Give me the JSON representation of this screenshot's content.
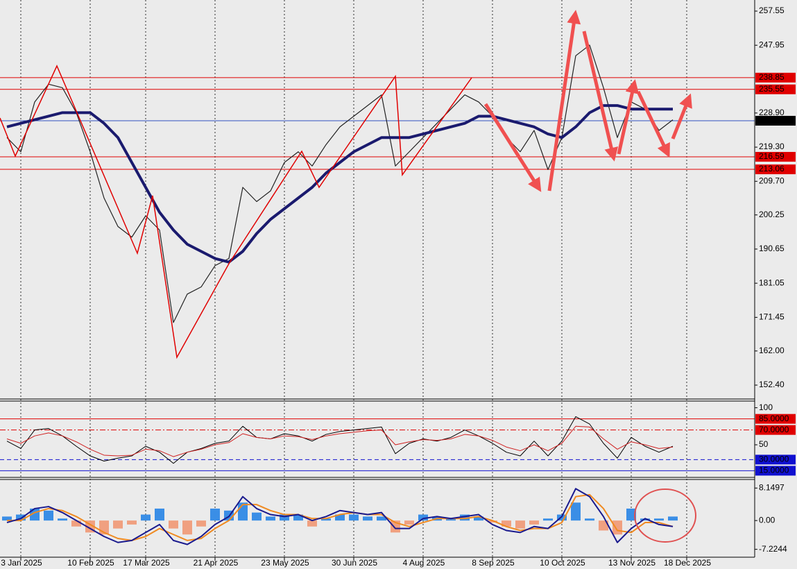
{
  "chart_data": [
    {
      "type": "line",
      "panel": "price",
      "categories": [
        null,
        "3 Jan 2025",
        null,
        null,
        null,
        null,
        "10 Feb 2025",
        null,
        null,
        null,
        "17 Mar 2025",
        null,
        null,
        null,
        null,
        "21 Apr 2025",
        null,
        null,
        null,
        null,
        "23 May 2025",
        null,
        null,
        null,
        null,
        "30 Jun 2025",
        null,
        null,
        null,
        null,
        "4 Aug 2025",
        null,
        null,
        null,
        null,
        "8 Sep 2025",
        null,
        null,
        null,
        null,
        "10 Oct 2025",
        null,
        null,
        null,
        null,
        "13 Nov 2025",
        null,
        null,
        null,
        "18 Dec 2025",
        null,
        null,
        null,
        null
      ],
      "series": [
        {
          "color": "#222222",
          "width": 1.2,
          "values": [
            222,
            218,
            232,
            237,
            236,
            229,
            218,
            205,
            197,
            194,
            200,
            196,
            170,
            178,
            180,
            186,
            188,
            208,
            204,
            207,
            215,
            218,
            214,
            220,
            225,
            228,
            231,
            234,
            214,
            218,
            222,
            226,
            230,
            234,
            232,
            228,
            222,
            218,
            224,
            213,
            222,
            245,
            248,
            236,
            222,
            232,
            230,
            224,
            227,
            null,
            null,
            null,
            null,
            null
          ]
        },
        {
          "color": "#1a1a6e",
          "width": 4,
          "values": [
            225,
            226,
            227,
            228,
            229,
            229,
            229,
            226,
            222,
            215,
            208,
            201,
            196,
            192,
            190,
            188,
            187,
            190,
            195,
            199,
            202,
            205,
            208,
            212,
            215,
            218,
            220,
            222,
            222,
            222,
            223,
            224,
            225,
            226,
            228,
            228,
            227,
            226,
            225,
            223,
            222,
            225,
            229,
            231,
            231,
            230,
            230,
            230,
            230,
            null,
            null,
            null,
            null,
            null
          ]
        }
      ],
      "ylim": [
        148.5,
        260.67
      ],
      "yticks": [
        257.55,
        247.95,
        {
          "value": 228.9,
          "label": "228.90"
        },
        {
          "value": 219.3,
          "label": "219.30"
        },
        {
          "value": 209.7,
          "label": "209.70"
        },
        200.25,
        190.65,
        181.05,
        171.45,
        {
          "value": 162,
          "label": "162.00"
        },
        {
          "value": 152.4,
          "label": "152.40"
        }
      ],
      "levels": [
        {
          "value": 238.85,
          "color": "#e00000",
          "text_color": "#ffffff"
        },
        {
          "value": 235.55,
          "color": "#e00000",
          "text_color": "#ffffff"
        },
        {
          "value": 226.73,
          "color": "#3050c0",
          "label_bg": "#000000",
          "text_color": "#ffffff"
        },
        {
          "value": 216.59,
          "color": "#e00000",
          "text_color": "#ffffff"
        },
        {
          "value": 213.06,
          "color": "#e00000",
          "text_color": "#ffffff"
        }
      ]
    },
    {
      "type": "line",
      "panel": "rsi",
      "series": [
        {
          "color": "#000000",
          "width": 1,
          "values": [
            55,
            45,
            70,
            72,
            62,
            48,
            35,
            28,
            32,
            35,
            48,
            40,
            25,
            40,
            45,
            52,
            55,
            75,
            60,
            58,
            65,
            62,
            55,
            64,
            68,
            70,
            72,
            74,
            38,
            52,
            58,
            55,
            60,
            70,
            62,
            52,
            40,
            35,
            55,
            35,
            55,
            88,
            78,
            52,
            32,
            60,
            48,
            40,
            48,
            null,
            null,
            null,
            null,
            null
          ]
        },
        {
          "color": "#d02020",
          "width": 1,
          "values": [
            58,
            52,
            62,
            66,
            62,
            54,
            44,
            36,
            35,
            36,
            44,
            42,
            34,
            40,
            44,
            50,
            53,
            65,
            60,
            58,
            62,
            61,
            57,
            62,
            65,
            67,
            69,
            70,
            50,
            54,
            57,
            56,
            58,
            64,
            62,
            56,
            47,
            42,
            50,
            42,
            52,
            75,
            74,
            58,
            44,
            54,
            50,
            45,
            47,
            null,
            null,
            null,
            null,
            null
          ]
        }
      ],
      "ylim": [
        6,
        109
      ],
      "yticks": [
        100,
        50
      ],
      "levels": [
        {
          "value": 85,
          "label": "85.0000",
          "color": "#e00000",
          "text_color": "#ffffff",
          "dash": "none"
        },
        {
          "value": 70,
          "label": "70.0000",
          "color": "#e00000",
          "text_color": "#ffffff",
          "dash": "8 3 2 3"
        },
        {
          "value": 30,
          "label": "30.0000",
          "color": "#1010d0",
          "text_color": "#ffffff",
          "dash": "6 4"
        },
        {
          "value": 15,
          "label": "15.0000",
          "color": "#1010d0",
          "text_color": "#ffffff",
          "dash": "none"
        }
      ]
    },
    {
      "type": "macd",
      "panel": "macd",
      "series": [
        {
          "type": "histogram",
          "color": "#3a8ee6",
          "negative_color": "#f0a080",
          "values": [
            1,
            1.5,
            3,
            2.5,
            0.5,
            -1.5,
            -3,
            -3.5,
            -2,
            -1,
            1.5,
            3,
            -2,
            -3.5,
            -1.5,
            3,
            2.5,
            4.5,
            2,
            1,
            1.5,
            1.5,
            -1.5,
            0.5,
            1.5,
            1.5,
            1,
            1,
            -3,
            -1,
            1.5,
            1,
            0.5,
            1.5,
            1,
            -0.5,
            -1.5,
            -2,
            -1,
            0.5,
            1.5,
            4.5,
            0.5,
            -2.5,
            -3.5,
            3,
            0.5,
            0.5,
            1,
            null,
            null,
            null,
            null,
            null
          ]
        },
        {
          "type": "line",
          "color": "#f08a20",
          "width": 2,
          "values": [
            0,
            0,
            2,
            3,
            2.5,
            1,
            -1,
            -3,
            -4.5,
            -5,
            -4,
            -2,
            -3.5,
            -5,
            -4.5,
            -2,
            0,
            4,
            4,
            2.5,
            1.5,
            1.5,
            0.5,
            0.5,
            1.5,
            2,
            1.5,
            1.5,
            -0.5,
            -1.5,
            -0.5,
            0.5,
            0.5,
            0.5,
            1,
            0,
            -1.5,
            -2.5,
            -2,
            -2,
            -0.5,
            6,
            6.5,
            3,
            -2.5,
            -3,
            -0.5,
            -0.5,
            -1.5,
            null,
            null,
            null,
            null,
            null
          ]
        },
        {
          "type": "line",
          "color": "#1a1a8e",
          "width": 2,
          "values": [
            -0.5,
            0.5,
            3,
            3.5,
            2,
            0,
            -2,
            -4,
            -5.5,
            -5,
            -3,
            -1,
            -5,
            -6,
            -4,
            -1,
            1,
            6,
            3,
            1.5,
            1,
            1.5,
            0,
            1,
            2.5,
            2,
            1.5,
            2,
            -2,
            -2,
            0.5,
            1,
            0.5,
            1,
            1.5,
            -1,
            -2.5,
            -3,
            -1.5,
            -2,
            1,
            8,
            6,
            1,
            -5.5,
            -2,
            0.5,
            -1,
            -1.5,
            null,
            null,
            null,
            null,
            null
          ]
        }
      ],
      "ylim": [
        -9.2,
        10.3
      ],
      "yticks": [
        8.1497,
        {
          "value": 0,
          "label": "0.00"
        },
        -7.2244
      ]
    }
  ]
}
